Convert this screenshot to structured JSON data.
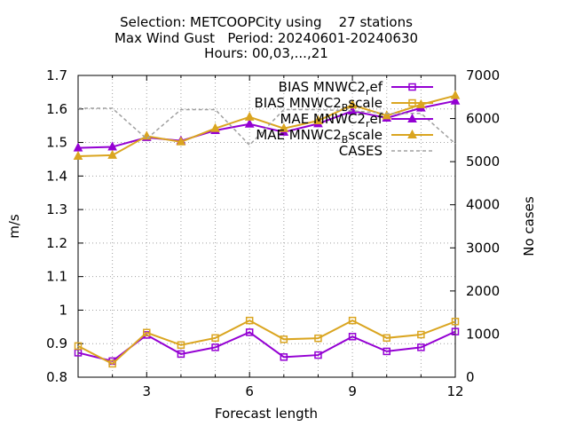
{
  "chart_data": {
    "type": "line",
    "title_lines": [
      "Selection: METCOOPCity using    27 stations",
      "Max Wind Gust   Period: 20240601-20240630",
      "Hours: 00,03,...,21"
    ],
    "xlabel": "Forecast length",
    "ylabel": "m/s",
    "y2label": "No cases",
    "xlim": [
      1,
      12
    ],
    "ylim": [
      0.8,
      1.7
    ],
    "y2lim": [
      0,
      7000
    ],
    "x_ticks": [
      "3",
      "6",
      "9",
      "12"
    ],
    "y_ticks": [
      "0.8",
      "0.9",
      "1",
      "1.1",
      "1.2",
      "1.3",
      "1.4",
      "1.5",
      "1.6",
      "1.7"
    ],
    "y2_ticks": [
      "0",
      "1000",
      "2000",
      "3000",
      "4000",
      "5000",
      "6000",
      "7000"
    ],
    "grid": true,
    "legend_position": "top-right",
    "x": [
      1,
      2,
      3,
      4,
      5,
      6,
      7,
      8,
      9,
      10,
      11,
      12
    ],
    "series": [
      {
        "label": "BIAS MNWC2",
        "sub": "r",
        "tail": "ef",
        "color": "#9400d3",
        "marker": "square",
        "axis": "y1",
        "values": [
          0.873,
          0.848,
          0.926,
          0.869,
          0.889,
          0.934,
          0.86,
          0.866,
          0.921,
          0.877,
          0.889,
          0.936
        ]
      },
      {
        "label": "BIAS MNWC2",
        "sub": "B",
        "tail": "scale",
        "color": "#daa520",
        "marker": "square",
        "axis": "y1",
        "values": [
          0.893,
          0.84,
          0.933,
          0.896,
          0.917,
          0.969,
          0.913,
          0.916,
          0.969,
          0.917,
          0.927,
          0.966
        ]
      },
      {
        "label": "MAE MNWC2",
        "sub": "r",
        "tail": "ef",
        "color": "#9400d3",
        "marker": "triangle",
        "axis": "y1",
        "values": [
          1.484,
          1.487,
          1.515,
          1.505,
          1.536,
          1.555,
          1.531,
          1.556,
          1.594,
          1.573,
          1.603,
          1.624
        ]
      },
      {
        "label": "MAE MNWC2",
        "sub": "B",
        "tail": "scale",
        "color": "#daa520",
        "marker": "triangle",
        "axis": "y1",
        "values": [
          1.459,
          1.462,
          1.519,
          1.502,
          1.542,
          1.576,
          1.542,
          1.565,
          1.612,
          1.58,
          1.613,
          1.64
        ]
      },
      {
        "label": "CASES",
        "sub": "",
        "tail": "",
        "color": "#a0a0a0",
        "marker": "none",
        "axis": "y2",
        "dashed": true,
        "values": [
          6237,
          6237,
          5529,
          6208,
          6208,
          5384,
          6208,
          6208,
          6179,
          6121,
          6121,
          5416
        ]
      }
    ]
  }
}
